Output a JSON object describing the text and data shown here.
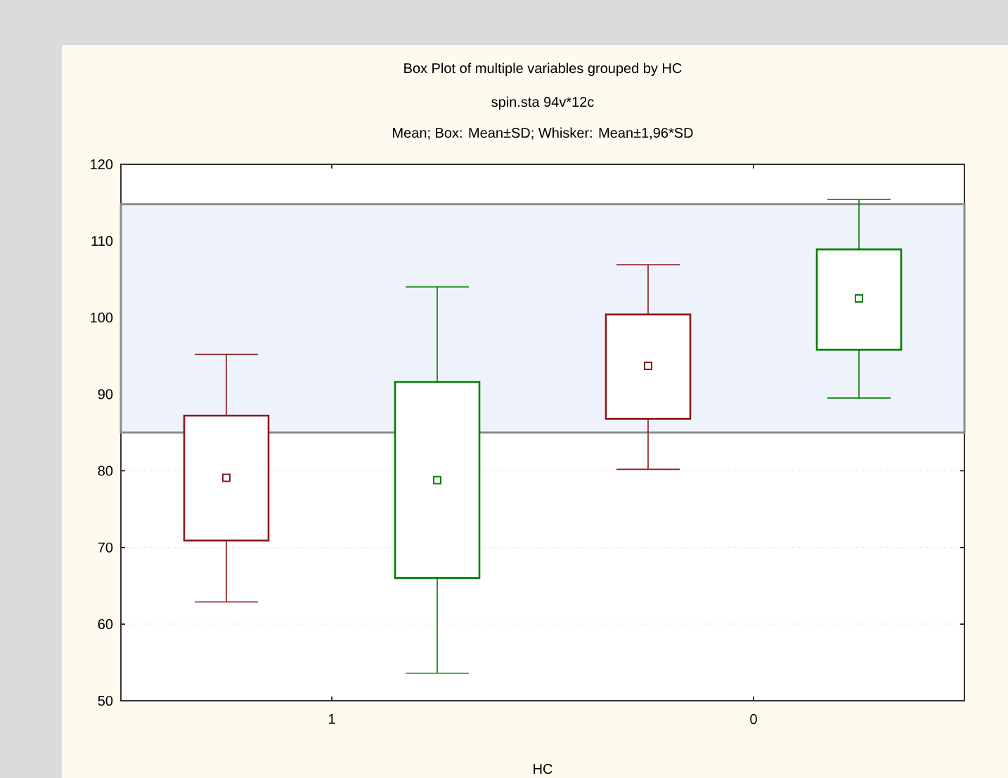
{
  "chart_data": {
    "type": "box",
    "title": "Box Plot of multiple variables grouped by  HC",
    "subtitle": "spin.sta 94v*12c",
    "annotations": [
      "Mean; Box: Mean±SD; Whisker: Mean±1,96*SD"
    ],
    "xlabel": "HC",
    "categories": [
      "1",
      "0"
    ],
    "series": [
      {
        "color": "#8b1a1a",
        "boxes": [
          {
            "low": 62.9,
            "q1": 70.9,
            "median": 79.1,
            "q3": 87.2,
            "high": 95.2
          },
          {
            "low": 80.2,
            "q1": 86.8,
            "median": 93.7,
            "q3": 100.4,
            "high": 106.9
          }
        ]
      },
      {
        "color": "#008000",
        "boxes": [
          {
            "low": 53.6,
            "q1": 66.0,
            "median": 78.8,
            "q3": 91.6,
            "high": 104.0
          },
          {
            "low": 89.5,
            "q1": 95.8,
            "median": 102.5,
            "q3": 108.9,
            "high": 115.4
          }
        ]
      }
    ],
    "ylim": [
      50,
      120
    ],
    "yticks": [
      50,
      60,
      70,
      80,
      90,
      100,
      110,
      120
    ],
    "bands": [
      {
        "axis": "y",
        "from": 85,
        "to": 114.8,
        "color": "#eef3fb"
      }
    ],
    "grid": "y",
    "marker": "square"
  }
}
